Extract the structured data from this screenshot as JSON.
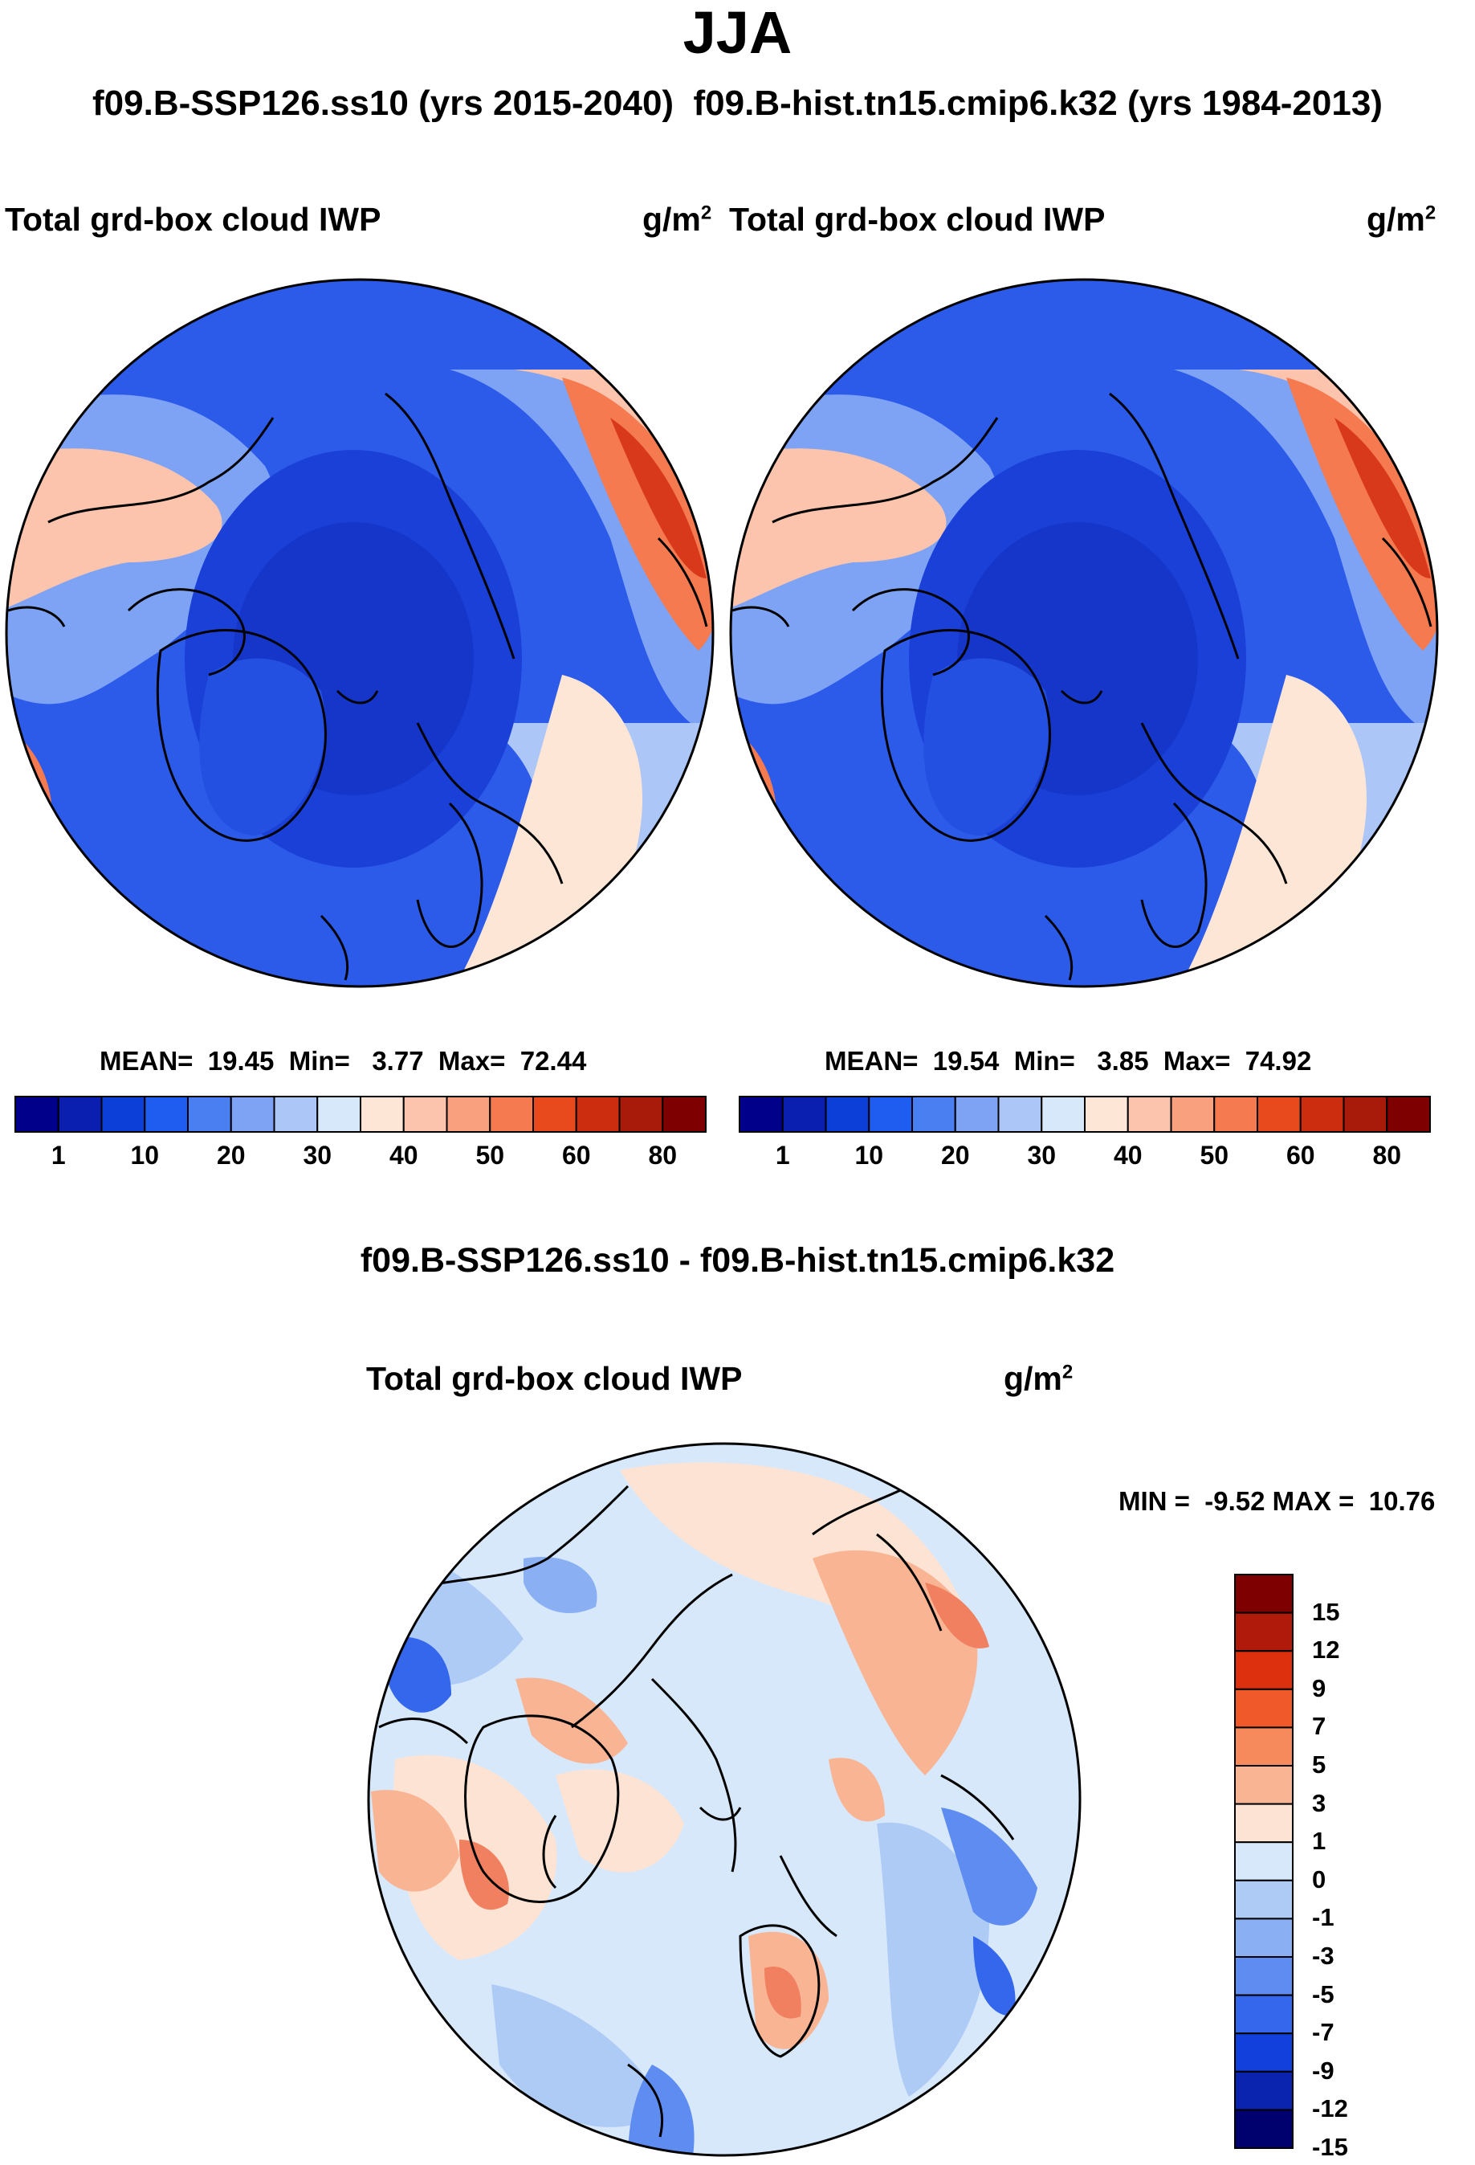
{
  "season": "JJA",
  "subtitle": {
    "case1": "f09.B-SSP126.ss10 (yrs 2015-2040)",
    "case2": "f09.B-hist.tn15.cmip6.k32 (yrs 1984-2013)"
  },
  "panels": [
    {
      "title": "Total grd-box cloud IWP",
      "units_base": "g/m",
      "units_exp": "2",
      "stats": {
        "mean_label": "MEAN=",
        "mean": "19.45",
        "min_label": "Min=",
        "min": "3.77",
        "max_label": "Max=",
        "max": "72.44"
      }
    },
    {
      "title": "Total grd-box cloud IWP",
      "units_base": "g/m",
      "units_exp": "2",
      "stats": {
        "mean_label": "MEAN=",
        "mean": "19.54",
        "min_label": "Min=",
        "min": "3.85",
        "max_label": "Max=",
        "max": "74.92"
      }
    }
  ],
  "abs_colorbar": {
    "colors": [
      "#00008b",
      "#0a1fb0",
      "#0b3fd8",
      "#1f5cf0",
      "#4a7ff2",
      "#7ea3f5",
      "#abc6f7",
      "#d8e8fb",
      "#fde6d6",
      "#fcc4ac",
      "#f9a07e",
      "#f57a50",
      "#e84a1e",
      "#cc2d0f",
      "#a81a0a",
      "#7f0000"
    ],
    "ticks": [
      "1",
      "10",
      "20",
      "30",
      "40",
      "50",
      "60",
      "80"
    ]
  },
  "diff": {
    "title": "f09.B-SSP126.ss10 - f09.B-hist.tn15.cmip6.k32",
    "panel_title": "Total grd-box cloud IWP",
    "units_base": "g/m",
    "units_exp": "2",
    "min_label": "MIN =",
    "min": "-9.52",
    "max_label": "MAX =",
    "max": "10.76",
    "colorbar": {
      "colors": [
        "#7f0000",
        "#b01a0a",
        "#dc300f",
        "#f05a2a",
        "#f78a5c",
        "#f9b494",
        "#fde3d3",
        "#d7e8fb",
        "#aecbf6",
        "#8aaff2",
        "#5e8cf0",
        "#3467ec",
        "#1240dc",
        "#0a24b0",
        "#00006e"
      ],
      "ticks": [
        "15",
        "12",
        "9",
        "7",
        "5",
        "3",
        "1",
        "0",
        "-1",
        "-3",
        "-5",
        "-7",
        "-9",
        "-12",
        "-15"
      ]
    }
  },
  "map_colors": {
    "deep_blue": "#1536c9",
    "mid_blue": "#2c5bea",
    "light_blue": "#7ea3f5",
    "pale_blue": "#d8e8fb",
    "peach": "#fcc4ac",
    "orange": "#f57a50",
    "red": "#d8391a",
    "diff_pale_blue": "#d7e8fb",
    "diff_pale_peach": "#fde3d3",
    "diff_salmon": "#f9b494",
    "diff_orange": "#f08060",
    "diff_blue": "#5e8cf0"
  }
}
